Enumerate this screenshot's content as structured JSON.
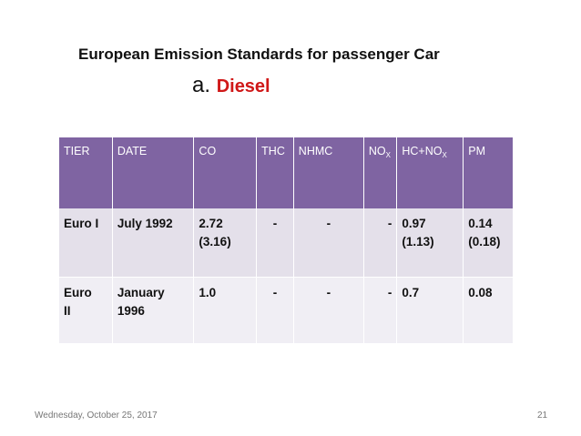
{
  "slide": {
    "title": "European Emission Standards for passenger Car",
    "subtitle_letter": "a.",
    "subtitle_word": "Diesel"
  },
  "table": {
    "headers": {
      "tier": "TIER",
      "date": "DATE",
      "co": "CO",
      "thc": "THC",
      "nhmc": "NHMC",
      "nox_main": "NO",
      "nox_sub": "X",
      "hcnox_main": "HC+NO",
      "hcnox_sub": "X",
      "pm": "PM"
    },
    "rows": [
      {
        "tier": "Euro I",
        "date": "July 1992",
        "co": "2.72",
        "co_paren": "(3.16)",
        "thc": "-",
        "nhmc": "-",
        "nox": "-",
        "hcnox": "0.97",
        "hcnox_paren": "(1.13)",
        "pm": "0.14",
        "pm_paren": "(0.18)"
      },
      {
        "tier_line1": "Euro",
        "tier_line2": "II",
        "date_line1": "January",
        "date_line2": "1996",
        "co": "1.0",
        "thc": "-",
        "nhmc": "-",
        "nox": "-",
        "hcnox": "0.7",
        "pm": "0.08"
      }
    ]
  },
  "footer": {
    "date": "Wednesday, October 25, 2017",
    "page": "21"
  }
}
